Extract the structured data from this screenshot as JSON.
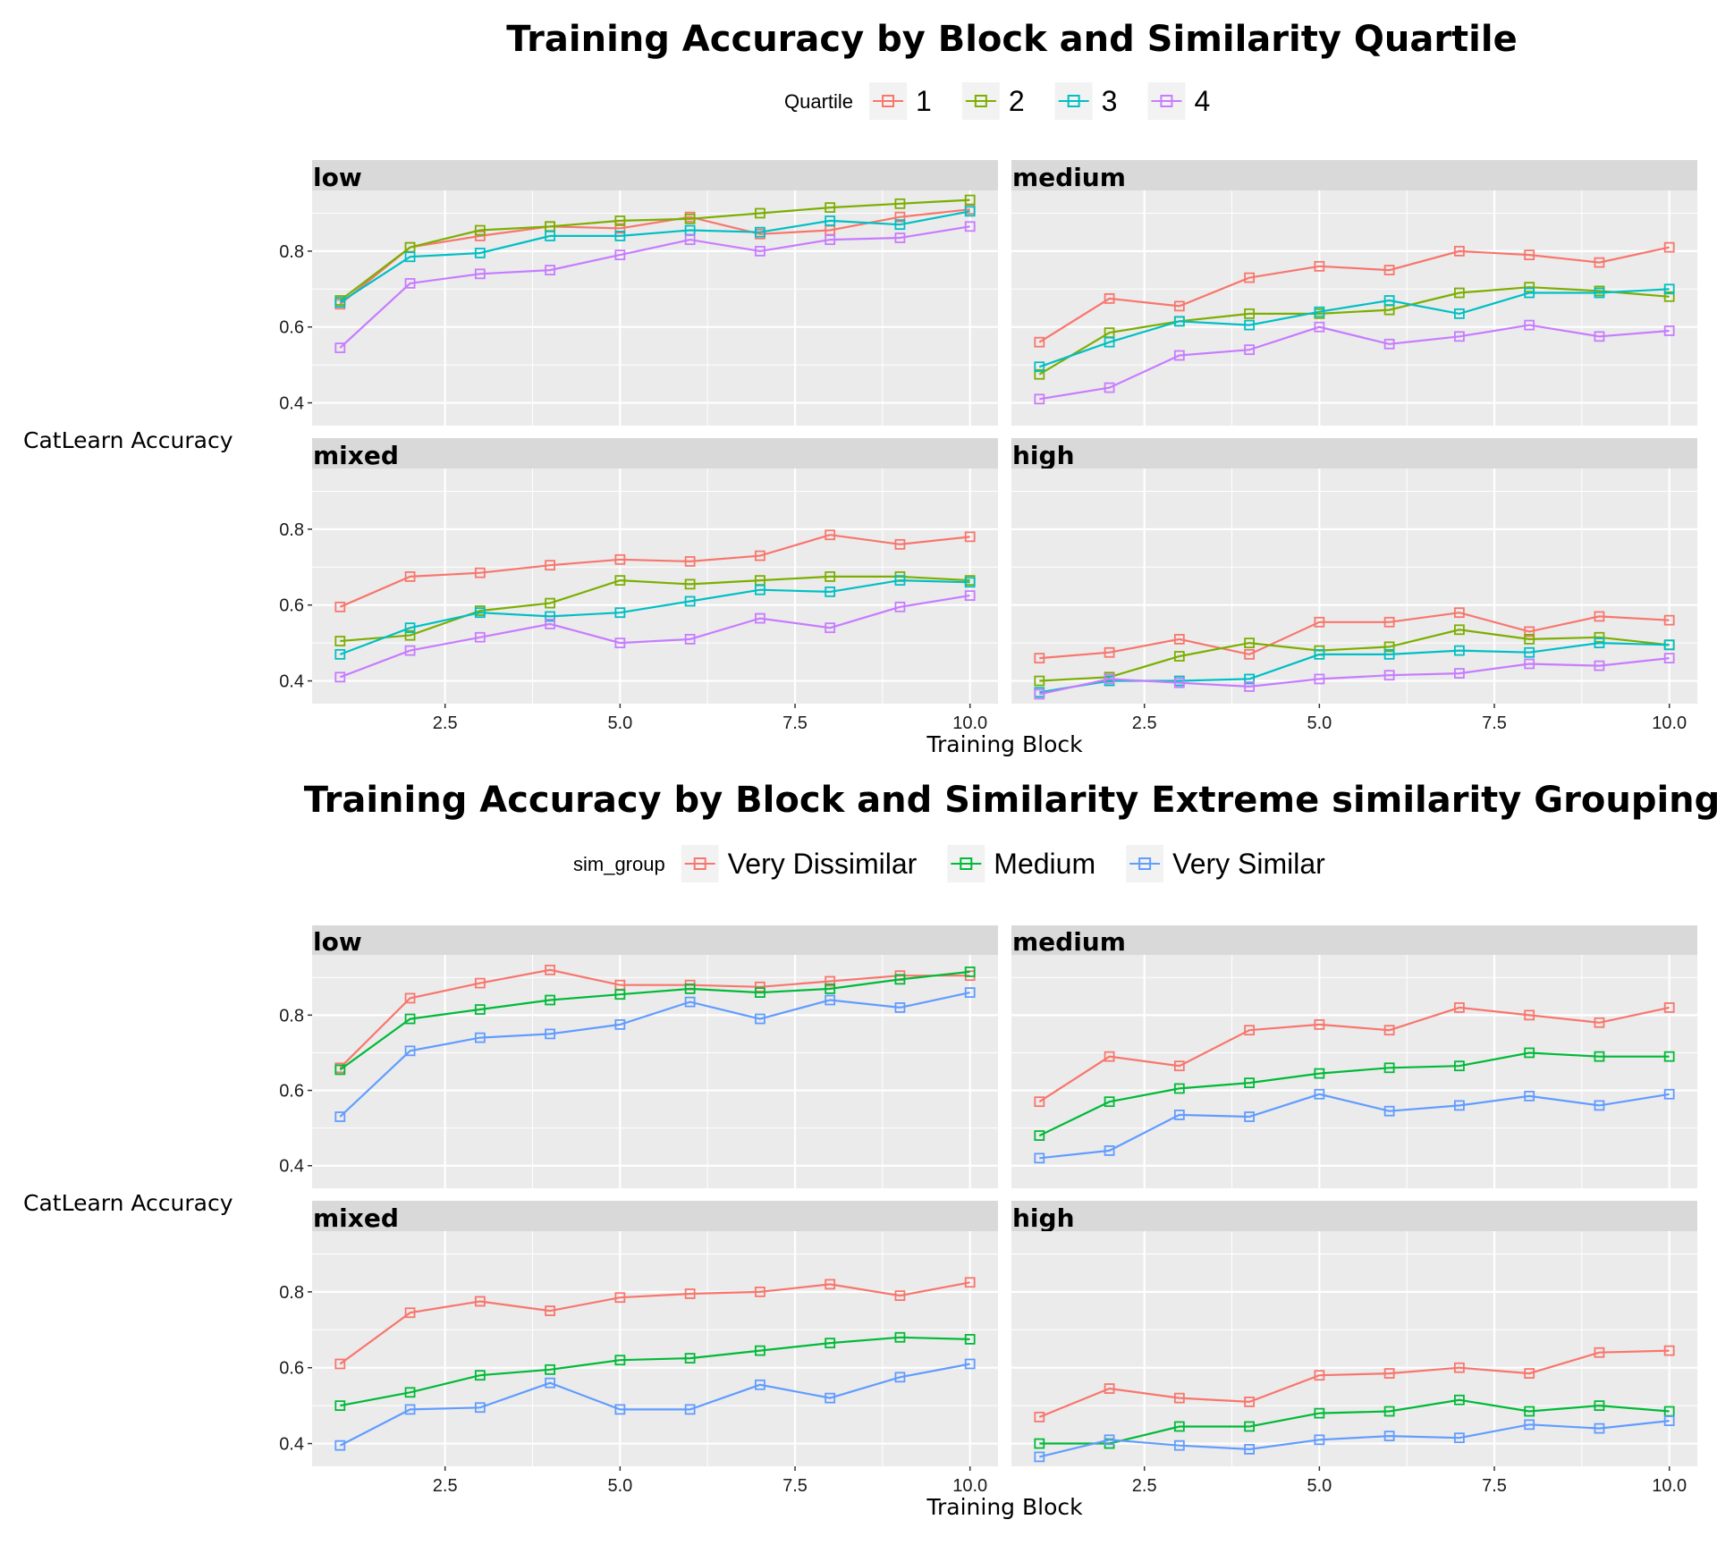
{
  "chart_data": [
    {
      "type": "line",
      "title": "Training Accuracy by Block and Similarity Quartile",
      "xlabel": "Training Block",
      "ylabel": "CatLearn Accuracy",
      "legend_title": "Quartile",
      "legend_position": "top",
      "grid": true,
      "xlim": [
        0.6,
        10.4
      ],
      "ylim": [
        0.34,
        0.96
      ],
      "x_ticks": [
        2.5,
        5.0,
        7.5,
        10.0
      ],
      "x_tick_labels": [
        "2.5",
        "5.0",
        "7.5",
        "10.0"
      ],
      "y_ticks": [
        0.4,
        0.6,
        0.8
      ],
      "y_tick_labels": [
        "0.4",
        "0.6",
        "0.8"
      ],
      "x": [
        1,
        2,
        3,
        4,
        5,
        6,
        7,
        8,
        9,
        10
      ],
      "series_meta": [
        {
          "name": "1",
          "color": "#F8766D"
        },
        {
          "name": "2",
          "color": "#7CAE00"
        },
        {
          "name": "3",
          "color": "#00BFC4"
        },
        {
          "name": "4",
          "color": "#C77CFF"
        }
      ],
      "panels": [
        {
          "label": "low",
          "series": [
            {
              "name": "1",
              "values": [
                0.66,
                0.81,
                0.84,
                0.865,
                0.86,
                0.89,
                0.845,
                0.855,
                0.89,
                0.91
              ]
            },
            {
              "name": "2",
              "values": [
                0.67,
                0.81,
                0.855,
                0.865,
                0.88,
                0.885,
                0.9,
                0.915,
                0.925,
                0.935
              ]
            },
            {
              "name": "3",
              "values": [
                0.665,
                0.785,
                0.795,
                0.84,
                0.84,
                0.855,
                0.85,
                0.88,
                0.87,
                0.905
              ]
            },
            {
              "name": "4",
              "values": [
                0.545,
                0.715,
                0.74,
                0.75,
                0.79,
                0.83,
                0.8,
                0.83,
                0.835,
                0.865
              ]
            }
          ]
        },
        {
          "label": "medium",
          "series": [
            {
              "name": "1",
              "values": [
                0.56,
                0.675,
                0.655,
                0.73,
                0.76,
                0.75,
                0.8,
                0.79,
                0.77,
                0.81
              ]
            },
            {
              "name": "2",
              "values": [
                0.475,
                0.585,
                0.615,
                0.635,
                0.635,
                0.645,
                0.69,
                0.705,
                0.695,
                0.68
              ]
            },
            {
              "name": "3",
              "values": [
                0.495,
                0.56,
                0.615,
                0.605,
                0.64,
                0.67,
                0.635,
                0.69,
                0.69,
                0.7
              ]
            },
            {
              "name": "4",
              "values": [
                0.41,
                0.44,
                0.525,
                0.54,
                0.6,
                0.555,
                0.575,
                0.605,
                0.575,
                0.59
              ]
            }
          ]
        },
        {
          "label": "mixed",
          "series": [
            {
              "name": "1",
              "values": [
                0.595,
                0.675,
                0.685,
                0.705,
                0.72,
                0.715,
                0.73,
                0.785,
                0.76,
                0.78
              ]
            },
            {
              "name": "2",
              "values": [
                0.505,
                0.52,
                0.585,
                0.605,
                0.665,
                0.655,
                0.665,
                0.675,
                0.675,
                0.665
              ]
            },
            {
              "name": "3",
              "values": [
                0.47,
                0.54,
                0.58,
                0.57,
                0.58,
                0.61,
                0.64,
                0.635,
                0.665,
                0.66
              ]
            },
            {
              "name": "4",
              "values": [
                0.41,
                0.48,
                0.515,
                0.55,
                0.5,
                0.51,
                0.565,
                0.54,
                0.595,
                0.625
              ]
            }
          ]
        },
        {
          "label": "high",
          "series": [
            {
              "name": "1",
              "values": [
                0.46,
                0.475,
                0.51,
                0.47,
                0.555,
                0.555,
                0.58,
                0.53,
                0.57,
                0.56
              ]
            },
            {
              "name": "2",
              "values": [
                0.4,
                0.41,
                0.465,
                0.5,
                0.48,
                0.49,
                0.535,
                0.51,
                0.515,
                0.495
              ]
            },
            {
              "name": "3",
              "values": [
                0.37,
                0.4,
                0.4,
                0.405,
                0.47,
                0.47,
                0.48,
                0.475,
                0.5,
                0.495
              ]
            },
            {
              "name": "4",
              "values": [
                0.365,
                0.405,
                0.395,
                0.385,
                0.405,
                0.415,
                0.42,
                0.445,
                0.44,
                0.46
              ]
            }
          ]
        }
      ]
    },
    {
      "type": "line",
      "title": "Training Accuracy by Block and Similarity Extreme similarity Grouping",
      "xlabel": "Training Block",
      "ylabel": "CatLearn Accuracy",
      "legend_title": "sim_group",
      "legend_position": "top",
      "grid": true,
      "xlim": [
        0.6,
        10.4
      ],
      "ylim": [
        0.34,
        0.96
      ],
      "x_ticks": [
        2.5,
        5.0,
        7.5,
        10.0
      ],
      "x_tick_labels": [
        "2.5",
        "5.0",
        "7.5",
        "10.0"
      ],
      "y_ticks": [
        0.4,
        0.6,
        0.8
      ],
      "y_tick_labels": [
        "0.4",
        "0.6",
        "0.8"
      ],
      "x": [
        1,
        2,
        3,
        4,
        5,
        6,
        7,
        8,
        9,
        10
      ],
      "series_meta": [
        {
          "name": "Very Dissimilar",
          "color": "#F8766D"
        },
        {
          "name": "Medium",
          "color": "#00BA38"
        },
        {
          "name": "Very Similar",
          "color": "#619CFF"
        }
      ],
      "panels": [
        {
          "label": "low",
          "series": [
            {
              "name": "Very Dissimilar",
              "values": [
                0.66,
                0.845,
                0.885,
                0.92,
                0.88,
                0.88,
                0.875,
                0.89,
                0.905,
                0.905
              ]
            },
            {
              "name": "Medium",
              "values": [
                0.655,
                0.79,
                0.815,
                0.84,
                0.855,
                0.87,
                0.86,
                0.87,
                0.895,
                0.915
              ]
            },
            {
              "name": "Very Similar",
              "values": [
                0.53,
                0.705,
                0.74,
                0.75,
                0.775,
                0.835,
                0.79,
                0.84,
                0.82,
                0.86
              ]
            }
          ]
        },
        {
          "label": "medium",
          "series": [
            {
              "name": "Very Dissimilar",
              "values": [
                0.57,
                0.69,
                0.665,
                0.76,
                0.775,
                0.76,
                0.82,
                0.8,
                0.78,
                0.82
              ]
            },
            {
              "name": "Medium",
              "values": [
                0.48,
                0.57,
                0.605,
                0.62,
                0.645,
                0.66,
                0.665,
                0.7,
                0.69,
                0.69
              ]
            },
            {
              "name": "Very Similar",
              "values": [
                0.42,
                0.44,
                0.535,
                0.53,
                0.59,
                0.545,
                0.56,
                0.585,
                0.56,
                0.59
              ]
            }
          ]
        },
        {
          "label": "mixed",
          "series": [
            {
              "name": "Very Dissimilar",
              "values": [
                0.61,
                0.745,
                0.775,
                0.75,
                0.785,
                0.795,
                0.8,
                0.82,
                0.79,
                0.825
              ]
            },
            {
              "name": "Medium",
              "values": [
                0.5,
                0.535,
                0.58,
                0.595,
                0.62,
                0.625,
                0.645,
                0.665,
                0.68,
                0.675
              ]
            },
            {
              "name": "Very Similar",
              "values": [
                0.395,
                0.49,
                0.495,
                0.56,
                0.49,
                0.49,
                0.555,
                0.52,
                0.575,
                0.61
              ]
            }
          ]
        },
        {
          "label": "high",
          "series": [
            {
              "name": "Very Dissimilar",
              "values": [
                0.47,
                0.545,
                0.52,
                0.51,
                0.58,
                0.585,
                0.6,
                0.585,
                0.64,
                0.645
              ]
            },
            {
              "name": "Medium",
              "values": [
                0.4,
                0.4,
                0.445,
                0.445,
                0.48,
                0.485,
                0.515,
                0.485,
                0.5,
                0.485
              ]
            },
            {
              "name": "Very Similar",
              "values": [
                0.365,
                0.41,
                0.395,
                0.385,
                0.41,
                0.42,
                0.415,
                0.45,
                0.44,
                0.46
              ]
            }
          ]
        }
      ]
    }
  ]
}
